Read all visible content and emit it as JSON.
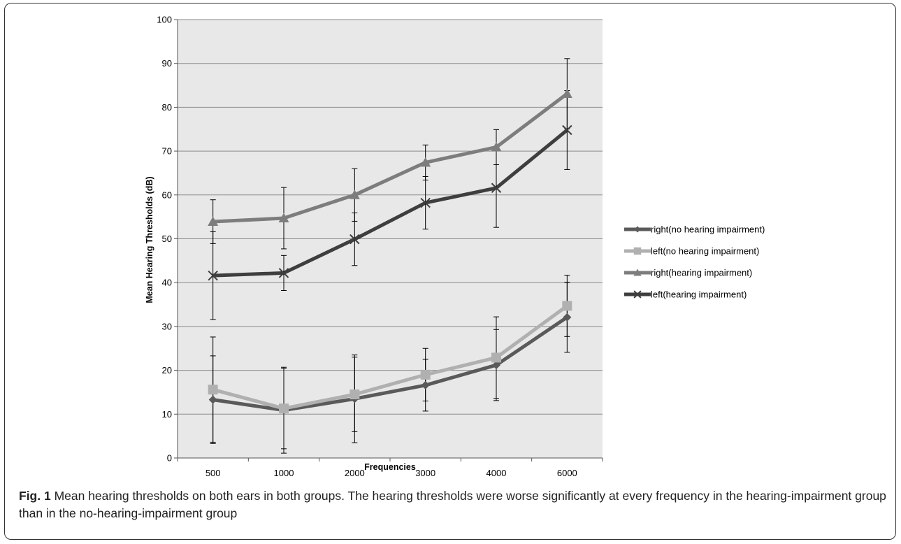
{
  "caption": {
    "label": "Fig. 1",
    "text": " Mean hearing thresholds on both ears in both groups. The hearing thresholds were worse significantly at every frequency in the hearing-impairment group than in the no-hearing-impairment group"
  },
  "chart_data": {
    "type": "line",
    "title": "",
    "xlabel": "Frequencies",
    "ylabel": "Mean Hearing Thresholds (dB)",
    "categories": [
      "500",
      "1000",
      "2000",
      "3000",
      "4000",
      "6000"
    ],
    "ylim": [
      0,
      100
    ],
    "yticks": [
      "0",
      "10",
      "20",
      "30",
      "40",
      "50",
      "60",
      "70",
      "80",
      "90",
      "100"
    ],
    "grid": true,
    "legend_position": "right",
    "plot_background": "#e8e8e8",
    "series": [
      {
        "name": "right(no hearing impairment)",
        "color": "#5a5a5a",
        "marker": "diamond",
        "values": [
          13.3,
          10.9,
          13.5,
          16.6,
          21.2,
          32.1
        ],
        "error": [
          10.0,
          9.8,
          10.0,
          5.9,
          8.1,
          8.0
        ]
      },
      {
        "name": "left(no hearing impairment)",
        "color": "#b0b0b0",
        "marker": "square",
        "values": [
          15.6,
          11.3,
          14.5,
          19.0,
          22.9,
          34.7
        ],
        "error": [
          12.0,
          9.2,
          8.5,
          6.0,
          9.3,
          7.0
        ]
      },
      {
        "name": "right(hearing impairment)",
        "color": "#7d7d7d",
        "marker": "triangle",
        "values": [
          53.9,
          54.7,
          60.0,
          67.4,
          70.9,
          83.1
        ],
        "error": [
          5.0,
          7.0,
          6.0,
          4.0,
          4.0,
          8.0
        ]
      },
      {
        "name": "left(hearing impairment)",
        "color": "#3e3e3e",
        "marker": "x",
        "values": [
          41.6,
          42.2,
          49.9,
          58.2,
          61.6,
          74.8
        ],
        "error": [
          10.0,
          4.0,
          6.0,
          6.0,
          9.0,
          9.0
        ]
      }
    ]
  }
}
